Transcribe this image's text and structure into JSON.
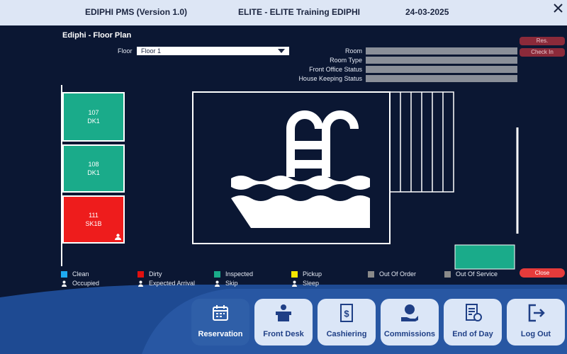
{
  "header": {
    "app": "EDIPHI PMS (Version 1.0)",
    "company": "ELITE - ELITE Training EDIPHI",
    "date": "24-03-2025"
  },
  "panel": {
    "title": "Ediphi - Floor Plan",
    "floor_label": "Floor",
    "floor_value": "Floor 1",
    "fields": [
      "Room",
      "Room Type",
      "Front Office Status",
      "House Keeping Status"
    ]
  },
  "buttons": {
    "res": "Res.",
    "check_in": "Check In",
    "close": "Close"
  },
  "rooms": [
    {
      "number": "107",
      "type": "DK1"
    },
    {
      "number": "108",
      "type": "DK1"
    },
    {
      "number": "111",
      "type": "SK1B"
    }
  ],
  "legend": [
    {
      "label": "Clean",
      "color": "#1eaaf1"
    },
    {
      "label": "Dirty",
      "color": "#e01010"
    },
    {
      "label": "Inspected",
      "color": "#1aab8a"
    },
    {
      "label": "Pickup",
      "color": "#f5e600"
    },
    {
      "label": "Out Of Order",
      "color": "#8a8a8a"
    },
    {
      "label": "Out Of Service",
      "color": "#8a8a8a"
    },
    {
      "label": "Occupied"
    },
    {
      "label": "Expected Arrival"
    },
    {
      "label": "Skip"
    },
    {
      "label": "Sleep"
    }
  ],
  "nav": [
    "Reservation",
    "Front Desk",
    "Cashiering",
    "Commissions",
    "End of Day",
    "Log Out"
  ]
}
